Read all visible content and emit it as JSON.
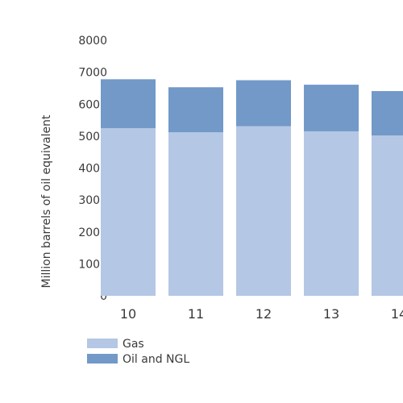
{
  "chart_data": {
    "type": "bar",
    "stacked": true,
    "categories": [
      "10",
      "11",
      "12",
      "13",
      "14"
    ],
    "series": [
      {
        "name": "Gas",
        "values": [
          5250,
          5120,
          5310,
          5150,
          5020
        ],
        "color": "#b4c7e4"
      },
      {
        "name": "Oil and NGL",
        "values": [
          1530,
          1410,
          1440,
          1460,
          1390
        ],
        "color": "#7299c8"
      }
    ],
    "title": "",
    "xlabel": "",
    "ylabel": "Million barrels of oil equivalent",
    "ylim": [
      0,
      8000
    ],
    "yticks": [
      "0",
      "1000",
      "2000",
      "3000",
      "4000",
      "5000",
      "6000",
      "7000",
      "8000"
    ],
    "grid": false,
    "legend_position": "bottom-left"
  }
}
